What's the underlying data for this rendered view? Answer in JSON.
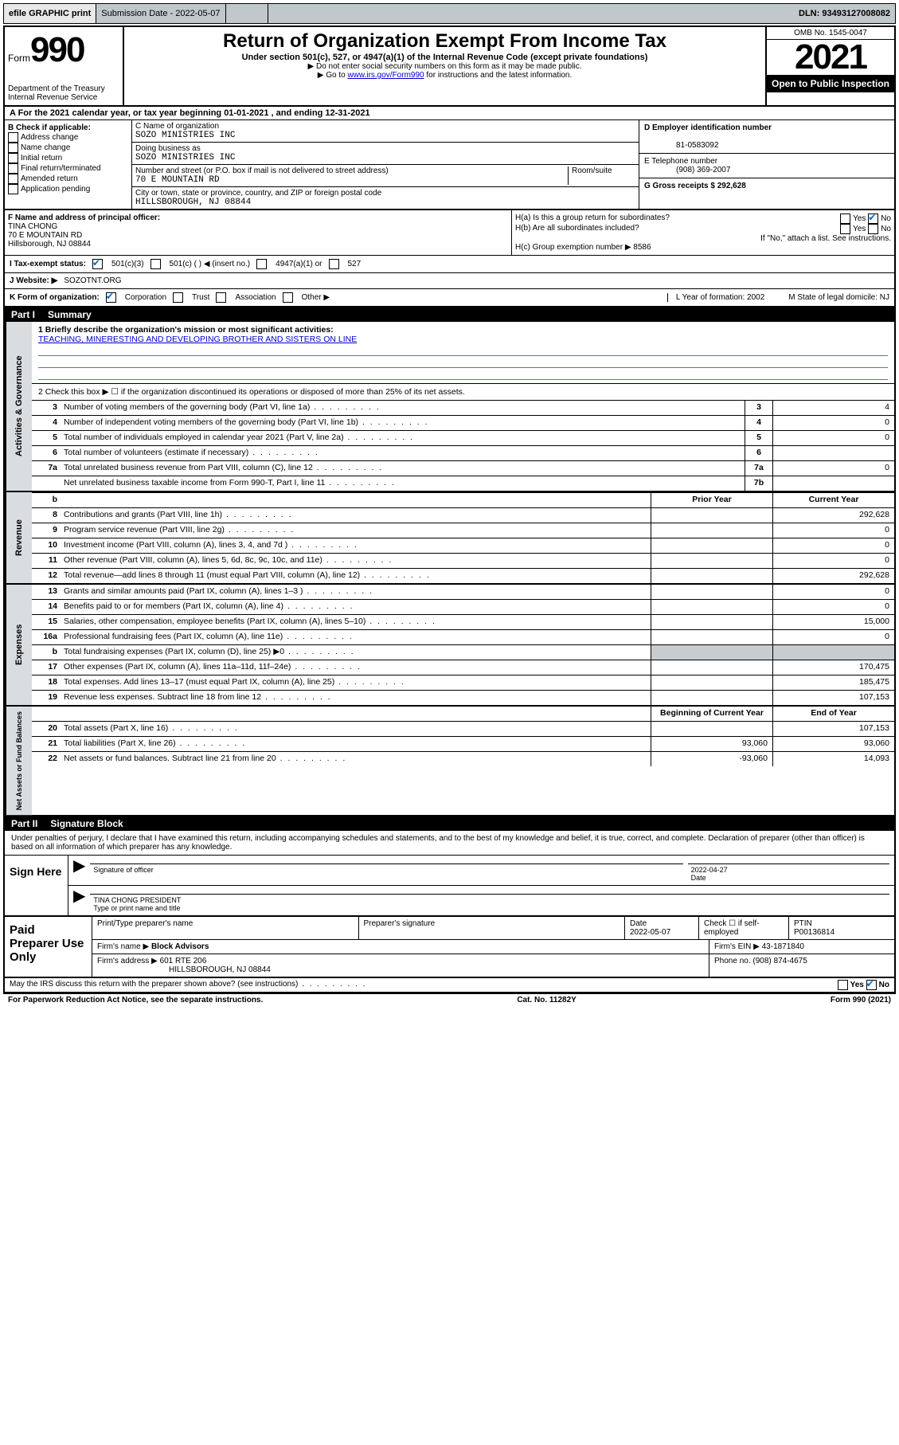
{
  "topbar": {
    "efile": "efile GRAPHIC print",
    "submission_label": "Submission Date - 2022-05-07",
    "dln_label": "DLN: 93493127008082"
  },
  "header": {
    "form_word": "Form",
    "form_number": "990",
    "dept": "Department of the Treasury",
    "irs": "Internal Revenue Service",
    "title": "Return of Organization Exempt From Income Tax",
    "subtitle": "Under section 501(c), 527, or 4947(a)(1) of the Internal Revenue Code (except private foundations)",
    "note1": "▶ Do not enter social security numbers on this form as it may be made public.",
    "note2_pre": "▶ Go to ",
    "note2_link": "www.irs.gov/Form990",
    "note2_post": " for instructions and the latest information.",
    "omb": "OMB No. 1545-0047",
    "year": "2021",
    "inspection": "Open to Public Inspection"
  },
  "row_a": "A For the 2021 calendar year, or tax year beginning 01-01-2021   , and ending 12-31-2021",
  "col_b": {
    "label": "B Check if applicable:",
    "items": [
      "Address change",
      "Name change",
      "Initial return",
      "Final return/terminated",
      "Amended return",
      "Application pending"
    ]
  },
  "col_c": {
    "name_label": "C Name of organization",
    "name": "SOZO MINISTRIES INC",
    "dba_label": "Doing business as",
    "dba": "SOZO MINISTRIES INC",
    "street_label": "Number and street (or P.O. box if mail is not delivered to street address)",
    "room_label": "Room/suite",
    "street": "70 E MOUNTAIN RD",
    "city_label": "City or town, state or province, country, and ZIP or foreign postal code",
    "city": "HILLSBOROUGH, NJ  08844"
  },
  "col_d": {
    "ein_label": "D Employer identification number",
    "ein": "81-0583092",
    "phone_label": "E Telephone number",
    "phone": "(908) 369-2007",
    "gross_label": "G Gross receipts $ 292,628"
  },
  "sec_f": {
    "label": "F Name and address of principal officer:",
    "name": "TINA CHONG",
    "street": "70 E MOUNTAIN RD",
    "city": "Hillsborough, NJ  08844",
    "h_a": "H(a)  Is this a group return for subordinates?",
    "h_b": "H(b)  Are all subordinates included?",
    "h_note": "If \"No,\" attach a list. See instructions.",
    "h_c": "H(c)  Group exemption number ▶   8586",
    "yes": "Yes",
    "no": "No"
  },
  "sec_i": {
    "label": "I   Tax-exempt status:",
    "opt1": "501(c)(3)",
    "opt2": "501(c) (   ) ◀ (insert no.)",
    "opt3": "4947(a)(1) or",
    "opt4": "527"
  },
  "sec_j": {
    "label": "J   Website: ▶",
    "value": "SOZOTNT.ORG"
  },
  "sec_k": {
    "label": "K Form of organization:",
    "opts": [
      "Corporation",
      "Trust",
      "Association",
      "Other ▶"
    ],
    "l": "L Year of formation: 2002",
    "m": "M State of legal domicile: NJ"
  },
  "parts": {
    "p1_label": "Part I",
    "p1_title": "Summary",
    "p2_label": "Part II",
    "p2_title": "Signature Block"
  },
  "summary": {
    "q1_label": "1  Briefly describe the organization's mission or most significant activities:",
    "q1_text": "TEACHING, MINERESTING AND DEVELOPING BROTHER AND SISTERS ON LINE",
    "q2": "2  Check this box ▶ ☐  if the organization discontinued its operations or disposed of more than 25% of its net assets.",
    "rows_ag": [
      {
        "n": "3",
        "t": "Number of voting members of the governing body (Part VI, line 1a)",
        "box": "3",
        "v": "4"
      },
      {
        "n": "4",
        "t": "Number of independent voting members of the governing body (Part VI, line 1b)",
        "box": "4",
        "v": "0"
      },
      {
        "n": "5",
        "t": "Total number of individuals employed in calendar year 2021 (Part V, line 2a)",
        "box": "5",
        "v": "0"
      },
      {
        "n": "6",
        "t": "Total number of volunteers (estimate if necessary)",
        "box": "6",
        "v": ""
      },
      {
        "n": "7a",
        "t": "Total unrelated business revenue from Part VIII, column (C), line 12",
        "box": "7a",
        "v": "0"
      },
      {
        "n": "",
        "t": "Net unrelated business taxable income from Form 990-T, Part I, line 11",
        "box": "7b",
        "v": ""
      }
    ],
    "prior_year": "Prior Year",
    "current_year": "Current Year",
    "rows_rev": [
      {
        "n": "8",
        "t": "Contributions and grants (Part VIII, line 1h)",
        "p": "",
        "c": "292,628"
      },
      {
        "n": "9",
        "t": "Program service revenue (Part VIII, line 2g)",
        "p": "",
        "c": "0"
      },
      {
        "n": "10",
        "t": "Investment income (Part VIII, column (A), lines 3, 4, and 7d )",
        "p": "",
        "c": "0"
      },
      {
        "n": "11",
        "t": "Other revenue (Part VIII, column (A), lines 5, 6d, 8c, 9c, 10c, and 11e)",
        "p": "",
        "c": "0"
      },
      {
        "n": "12",
        "t": "Total revenue—add lines 8 through 11 (must equal Part VIII, column (A), line 12)",
        "p": "",
        "c": "292,628"
      }
    ],
    "rows_exp": [
      {
        "n": "13",
        "t": "Grants and similar amounts paid (Part IX, column (A), lines 1–3 )",
        "p": "",
        "c": "0"
      },
      {
        "n": "14",
        "t": "Benefits paid to or for members (Part IX, column (A), line 4)",
        "p": "",
        "c": "0"
      },
      {
        "n": "15",
        "t": "Salaries, other compensation, employee benefits (Part IX, column (A), lines 5–10)",
        "p": "",
        "c": "15,000"
      },
      {
        "n": "16a",
        "t": "Professional fundraising fees (Part IX, column (A), line 11e)",
        "p": "",
        "c": "0"
      },
      {
        "n": "b",
        "t": "Total fundraising expenses (Part IX, column (D), line 25) ▶0",
        "p": "shade",
        "c": "shade"
      },
      {
        "n": "17",
        "t": "Other expenses (Part IX, column (A), lines 11a–11d, 11f–24e)",
        "p": "",
        "c": "170,475"
      },
      {
        "n": "18",
        "t": "Total expenses. Add lines 13–17 (must equal Part IX, column (A), line 25)",
        "p": "",
        "c": "185,475"
      },
      {
        "n": "19",
        "t": "Revenue less expenses. Subtract line 18 from line 12",
        "p": "",
        "c": "107,153"
      }
    ],
    "begin_year": "Beginning of Current Year",
    "end_year": "End of Year",
    "rows_net": [
      {
        "n": "20",
        "t": "Total assets (Part X, line 16)",
        "p": "",
        "c": "107,153"
      },
      {
        "n": "21",
        "t": "Total liabilities (Part X, line 26)",
        "p": "93,060",
        "c": "93,060"
      },
      {
        "n": "22",
        "t": "Net assets or fund balances. Subtract line 21 from line 20",
        "p": "-93,060",
        "c": "14,093"
      }
    ],
    "side_ag": "Activities & Governance",
    "side_rev": "Revenue",
    "side_exp": "Expenses",
    "side_net": "Net Assets or Fund Balances"
  },
  "sig": {
    "penalty": "Under penalties of perjury, I declare that I have examined this return, including accompanying schedules and statements, and to the best of my knowledge and belief, it is true, correct, and complete. Declaration of preparer (other than officer) is based on all information of which preparer has any knowledge.",
    "sign_here": "Sign Here",
    "sig_officer": "Signature of officer",
    "date": "Date",
    "date_val": "2022-04-27",
    "name": "TINA CHONG  PRESIDENT",
    "name_label": "Type or print name and title"
  },
  "paid": {
    "label": "Paid Preparer Use Only",
    "h1": "Print/Type preparer's name",
    "h2": "Preparer's signature",
    "h3": "Date",
    "h3v": "2022-05-07",
    "h4": "Check ☐ if self-employed",
    "h5": "PTIN",
    "h5v": "P00136814",
    "firm_label": "Firm's name    ▶",
    "firm": "Block Advisors",
    "ein_label": "Firm's EIN ▶",
    "ein": "43-1871840",
    "addr_label": "Firm's address ▶",
    "addr1": "601 RTE 206",
    "addr2": "HILLSBOROUGH, NJ  08844",
    "phone_label": "Phone no.",
    "phone": "(908) 874-4675"
  },
  "may": "May the IRS discuss this return with the preparer shown above? (see instructions)",
  "footer": {
    "left": "For Paperwork Reduction Act Notice, see the separate instructions.",
    "mid": "Cat. No. 11282Y",
    "right": "Form 990 (2021)"
  }
}
